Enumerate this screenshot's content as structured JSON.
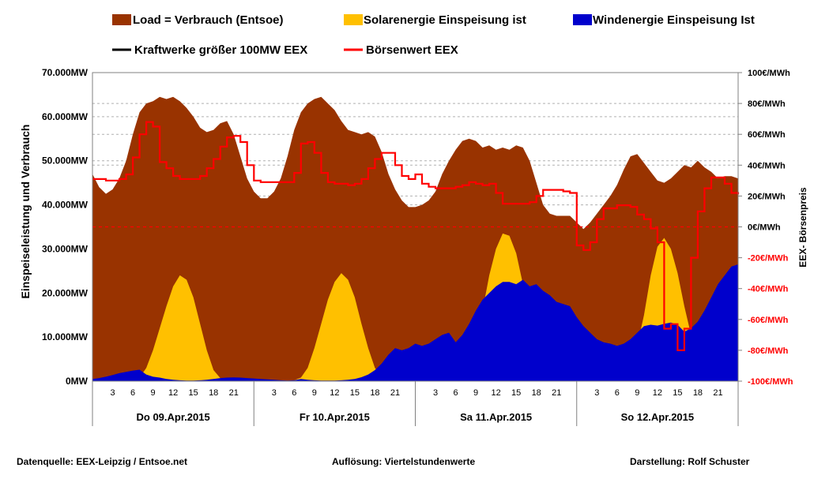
{
  "chart_data": {
    "type": "area",
    "legend": [
      {
        "label": "Load =  Verbrauch (Entsoe)",
        "color": "#993300",
        "kind": "box"
      },
      {
        "label": "Solarenergie Einspeisung ist",
        "color": "#FFC000",
        "kind": "box"
      },
      {
        "label": "Windenergie Einspeisung Ist",
        "color": "#0000CC",
        "kind": "box"
      },
      {
        "label": "Kraftwerke größer 100MW  EEX",
        "color": "#000000",
        "kind": "line"
      },
      {
        "label": "Börsenwert EEX",
        "color": "#FF0000",
        "kind": "line"
      }
    ],
    "y_axis": {
      "title": "Einspeiseleistung und Verbrauch",
      "min": 0,
      "max": 70000,
      "ticks": [
        0,
        10000,
        20000,
        30000,
        40000,
        50000,
        60000,
        70000
      ],
      "tick_labels": [
        "0MW",
        "10.000MW",
        "20.000MW",
        "30.000MW",
        "40.000MW",
        "50.000MW",
        "60.000MW",
        "70.000MW"
      ]
    },
    "y2_axis": {
      "title": "EEX- Börsenpreis",
      "min": -100,
      "max": 100,
      "ticks": [
        100,
        80,
        60,
        40,
        20,
        0,
        -20,
        -40,
        -60,
        -80,
        -100
      ],
      "tick_labels": [
        "100€/MWh",
        "80€/MWh",
        "60€/MWh",
        "40€/MWh",
        "20€/MWh",
        "0€/MWh",
        "-20€/MWh",
        "-40€/MWh",
        "-60€/MWh",
        "-80€/MWh",
        "-100€/MWh"
      ],
      "negative_color": "#FF0000"
    },
    "x_axis": {
      "hour_ticks": [
        "3",
        "6",
        "9",
        "12",
        "15",
        "18",
        "21"
      ],
      "days": [
        "Do 09.Apr.2015",
        "Fr 10.Apr.2015",
        "Sa 11.Apr.2015",
        "So 12.Apr.2015"
      ],
      "hours_total": 96
    },
    "series": [
      {
        "name": "Load =  Verbrauch (Entsoe)",
        "color": "#993300",
        "x_hours": [
          0,
          1,
          2,
          3,
          4,
          5,
          6,
          7,
          8,
          9,
          10,
          11,
          12,
          13,
          14,
          15,
          16,
          17,
          18,
          19,
          20,
          21,
          22,
          23,
          24,
          25,
          26,
          27,
          28,
          29,
          30,
          31,
          32,
          33,
          34,
          35,
          36,
          37,
          38,
          39,
          40,
          41,
          42,
          43,
          44,
          45,
          46,
          47,
          48,
          49,
          50,
          51,
          52,
          53,
          54,
          55,
          56,
          57,
          58,
          59,
          60,
          61,
          62,
          63,
          64,
          65,
          66,
          67,
          68,
          69,
          70,
          71,
          72,
          73,
          74,
          75,
          76,
          77,
          78,
          79,
          80,
          81,
          82,
          83,
          84,
          85,
          86,
          87,
          88,
          89,
          90,
          91,
          92,
          93,
          94,
          95,
          96
        ],
        "values": [
          47000,
          44000,
          42500,
          43500,
          46000,
          50000,
          56000,
          61000,
          63000,
          63500,
          64500,
          64000,
          64500,
          63500,
          62000,
          60000,
          57500,
          56500,
          57000,
          58500,
          59000,
          56000,
          51000,
          46000,
          43000,
          41500,
          41500,
          43000,
          46000,
          51000,
          57000,
          61000,
          63000,
          64000,
          64500,
          63000,
          61500,
          59000,
          57000,
          56500,
          56000,
          56500,
          55500,
          52000,
          47000,
          43500,
          41000,
          39500,
          39500,
          40000,
          41000,
          43000,
          47000,
          50000,
          52500,
          54500,
          55000,
          54500,
          53000,
          53500,
          52500,
          53000,
          52500,
          53500,
          53000,
          50000,
          45000,
          40000,
          38000,
          37500,
          37500,
          37500,
          36000,
          34500,
          36000,
          38000,
          40000,
          42000,
          44500,
          48000,
          51000,
          51500,
          49500,
          47500,
          45500,
          45000,
          46000,
          47500,
          49000,
          48500,
          50000,
          48500,
          47500,
          46000,
          46500,
          46500,
          46000
        ]
      },
      {
        "name": "Solarenergie Einspeisung ist",
        "color": "#FFC000",
        "x_hours": [
          0,
          1,
          2,
          3,
          4,
          5,
          6,
          7,
          8,
          9,
          10,
          11,
          12,
          13,
          14,
          15,
          16,
          17,
          18,
          19,
          20,
          21,
          22,
          23,
          24,
          25,
          26,
          27,
          28,
          29,
          30,
          31,
          32,
          33,
          34,
          35,
          36,
          37,
          38,
          39,
          40,
          41,
          42,
          43,
          44,
          45,
          46,
          47,
          48,
          49,
          50,
          51,
          52,
          53,
          54,
          55,
          56,
          57,
          58,
          59,
          60,
          61,
          62,
          63,
          64,
          65,
          66,
          67,
          68,
          69,
          70,
          71,
          72,
          73,
          74,
          75,
          76,
          77,
          78,
          79,
          80,
          81,
          82,
          83,
          84,
          85,
          86,
          87,
          88,
          89,
          90,
          91,
          92,
          93,
          94,
          95,
          96
        ],
        "values": [
          0,
          0,
          0,
          0,
          0,
          0,
          200,
          800,
          3000,
          7000,
          12000,
          17000,
          21500,
          24000,
          23000,
          19000,
          13000,
          7000,
          2500,
          700,
          100,
          0,
          0,
          0,
          0,
          0,
          0,
          0,
          0,
          0,
          200,
          800,
          3000,
          7500,
          13000,
          18500,
          22500,
          24500,
          23000,
          19000,
          13000,
          7500,
          3000,
          900,
          100,
          0,
          0,
          0,
          0,
          0,
          0,
          0,
          0,
          0,
          200,
          1000,
          3500,
          9000,
          16000,
          24000,
          30000,
          33500,
          33000,
          29000,
          22000,
          15500,
          9000,
          3000,
          700,
          100,
          0,
          0,
          0,
          0,
          0,
          0,
          0,
          0,
          300,
          1000,
          3000,
          8000,
          15000,
          24000,
          30500,
          32500,
          30000,
          24500,
          17000,
          10500,
          4500,
          1000,
          200,
          0,
          0,
          0,
          0
        ]
      },
      {
        "name": "Windenergie Einspeisung Ist",
        "color": "#0000CC",
        "x_hours": [
          0,
          1,
          2,
          3,
          4,
          5,
          6,
          7,
          8,
          9,
          10,
          11,
          12,
          13,
          14,
          15,
          16,
          17,
          18,
          19,
          20,
          21,
          22,
          23,
          24,
          25,
          26,
          27,
          28,
          29,
          30,
          31,
          32,
          33,
          34,
          35,
          36,
          37,
          38,
          39,
          40,
          41,
          42,
          43,
          44,
          45,
          46,
          47,
          48,
          49,
          50,
          51,
          52,
          53,
          54,
          55,
          56,
          57,
          58,
          59,
          60,
          61,
          62,
          63,
          64,
          65,
          66,
          67,
          68,
          69,
          70,
          71,
          72,
          73,
          74,
          75,
          76,
          77,
          78,
          79,
          80,
          81,
          82,
          83,
          84,
          85,
          86,
          87,
          88,
          89,
          90,
          91,
          92,
          93,
          94,
          95,
          96
        ],
        "values": [
          500,
          700,
          1000,
          1400,
          1800,
          2100,
          2400,
          2600,
          1500,
          1000,
          800,
          500,
          300,
          200,
          150,
          150,
          200,
          300,
          500,
          700,
          800,
          850,
          800,
          700,
          600,
          500,
          400,
          300,
          200,
          150,
          200,
          500,
          300,
          200,
          150,
          150,
          150,
          200,
          300,
          500,
          900,
          1500,
          2500,
          4000,
          6000,
          7500,
          7000,
          7500,
          8500,
          8000,
          8500,
          9500,
          10500,
          11000,
          8800,
          10500,
          13000,
          16000,
          18500,
          20000,
          21500,
          22500,
          22500,
          22000,
          23000,
          21500,
          22000,
          20500,
          19500,
          18000,
          17500,
          17000,
          14500,
          12500,
          11000,
          9500,
          8800,
          8500,
          8000,
          8500,
          9500,
          11000,
          12500,
          12800,
          12600,
          13000,
          13300,
          12800,
          11200,
          12000,
          13500,
          16000,
          19000,
          22000,
          24000,
          26000,
          26500
        ]
      },
      {
        "name": "Börsenwert EEX",
        "color": "#FF0000",
        "axis": "right",
        "x_hours": [
          0,
          1,
          2,
          3,
          4,
          5,
          6,
          7,
          8,
          9,
          10,
          11,
          12,
          13,
          14,
          15,
          16,
          17,
          18,
          19,
          20,
          21,
          22,
          23,
          24,
          25,
          26,
          27,
          28,
          29,
          30,
          31,
          32,
          33,
          34,
          35,
          36,
          37,
          38,
          39,
          40,
          41,
          42,
          43,
          44,
          45,
          46,
          47,
          48,
          49,
          50,
          51,
          52,
          53,
          54,
          55,
          56,
          57,
          58,
          59,
          60,
          61,
          62,
          63,
          64,
          65,
          66,
          67,
          68,
          69,
          70,
          71,
          72,
          73,
          74,
          75,
          76,
          77,
          78,
          79,
          80,
          81,
          82,
          83,
          84,
          85,
          86,
          87,
          88,
          89,
          90,
          91,
          92,
          93,
          94,
          95,
          96
        ],
        "values": [
          31,
          31,
          30,
          30,
          31,
          34,
          45,
          60,
          68,
          65,
          42,
          38,
          33,
          31,
          31,
          31,
          33,
          38,
          44,
          52,
          58,
          59,
          55,
          40,
          30,
          29,
          29,
          29,
          29,
          29,
          35,
          54,
          55,
          48,
          35,
          29,
          28,
          28,
          27,
          28,
          31,
          38,
          44,
          48,
          48,
          40,
          33,
          31,
          34,
          28,
          26,
          25,
          25,
          25,
          26,
          27,
          29,
          28,
          27,
          28,
          22,
          15,
          15,
          15,
          15,
          16,
          20,
          24,
          24,
          24,
          23,
          22,
          -12,
          -15,
          -10,
          5,
          12,
          12,
          14,
          14,
          13,
          8,
          5,
          -1,
          -10,
          -66,
          -63,
          -80,
          -66,
          -20,
          10,
          25,
          32,
          32,
          28,
          22,
          21
        ]
      }
    ]
  },
  "footer": {
    "source": "Datenquelle:  EEX-Leipzig  /  Entsoe.net",
    "resolution": "Auflösung: Viertelstundenwerte",
    "author": "Darstellung: Rolf Schuster"
  }
}
